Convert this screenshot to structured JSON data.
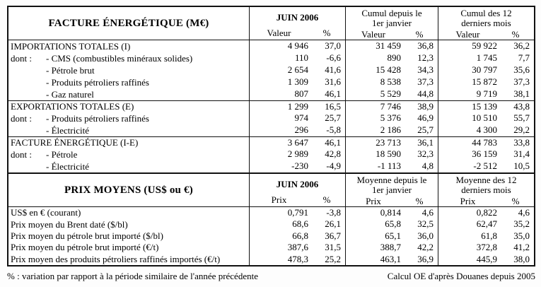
{
  "table1": {
    "title": "FACTURE ÉNERGÉTIQUE (M€)",
    "groups": [
      {
        "title": "JUIN 2006",
        "sub": [
          "Valeur",
          "%"
        ]
      },
      {
        "title": "Cumul depuis le\n1er janvier",
        "sub": [
          "Valeur",
          "%"
        ]
      },
      {
        "title": "Cumul des 12\nderniers mois",
        "sub": [
          "Valeur",
          "%"
        ]
      }
    ],
    "rows": [
      {
        "_class": "",
        "prefix": "",
        "label": "IMPORTATIONS TOTALES (I)",
        "v1": "4 946",
        "p1": "37,0",
        "v2": "31 459",
        "p2": "36,8",
        "v3": "59 922",
        "p3": "36,2"
      },
      {
        "_class": "indent",
        "prefix": "dont :",
        "label": "- CMS (combustibles minéraux solides)",
        "v1": "110",
        "p1": "-6,6",
        "v2": "890",
        "p2": "12,3",
        "v3": "1 745",
        "p3": "7,7"
      },
      {
        "_class": "indent",
        "prefix": "",
        "label": "- Pétrole brut",
        "v1": "2 654",
        "p1": "41,6",
        "v2": "15 428",
        "p2": "34,3",
        "v3": "30 797",
        "p3": "35,6"
      },
      {
        "_class": "indent",
        "prefix": "",
        "label": "- Produits pétroliers raffinés",
        "v1": "1 309",
        "p1": "31,6",
        "v2": "8 538",
        "p2": "37,3",
        "v3": "15 872",
        "p3": "37,3"
      },
      {
        "_class": "indent",
        "prefix": "",
        "label": "- Gaz naturel",
        "v1": "807",
        "p1": "46,1",
        "v2": "5 529",
        "p2": "44,8",
        "v3": "9 719",
        "p3": "38,1"
      },
      {
        "_class": "top",
        "prefix": "",
        "label": "EXPORTATIONS TOTALES (E)",
        "v1": "1 299",
        "p1": "16,5",
        "v2": "7 746",
        "p2": "38,9",
        "v3": "15 139",
        "p3": "43,8"
      },
      {
        "_class": "indent",
        "prefix": "dont :",
        "label": "- Produits pétroliers raffinés",
        "v1": "974",
        "p1": "25,7",
        "v2": "5 376",
        "p2": "46,9",
        "v3": "10 510",
        "p3": "55,7"
      },
      {
        "_class": "indent",
        "prefix": "",
        "label": "- Électricité",
        "v1": "296",
        "p1": "-5,8",
        "v2": "2 186",
        "p2": "25,7",
        "v3": "4 300",
        "p3": "29,2"
      },
      {
        "_class": "top",
        "prefix": "",
        "label": "FACTURE ÉNERGÉTIQUE (I-E)",
        "v1": "3 647",
        "p1": "46,1",
        "v2": "23 713",
        "p2": "36,1",
        "v3": "44 783",
        "p3": "33,8"
      },
      {
        "_class": "indent",
        "prefix": "dont :",
        "label": "- Pétrole",
        "v1": "2 989",
        "p1": "42,8",
        "v2": "18 590",
        "p2": "32,3",
        "v3": "36 159",
        "p3": "31,4"
      },
      {
        "_class": "indent",
        "prefix": "",
        "label": "- Électricité",
        "v1": "-230",
        "p1": "-4,9",
        "v2": "-1 113",
        "p2": "4,8",
        "v3": "-2 512",
        "p3": "10,5"
      }
    ]
  },
  "table2": {
    "title": "PRIX MOYENS (US$ ou €)",
    "groups": [
      {
        "title": "JUIN 2006",
        "sub": [
          "Prix",
          "%"
        ]
      },
      {
        "title": "Moyenne depuis le\n1er janvier",
        "sub": [
          "Prix",
          "%"
        ]
      },
      {
        "title": "Moyenne des 12\nderniers mois",
        "sub": [
          "Prix",
          "%"
        ]
      }
    ],
    "rows": [
      {
        "_class": "",
        "prefix": "",
        "label": "US$ en € (courant)",
        "v1": "0,791",
        "p1": "-3,8",
        "v2": "0,814",
        "p2": "4,6",
        "v3": "0,822",
        "p3": "4,6"
      },
      {
        "_class": "",
        "prefix": "",
        "label": "Prix moyen du Brent daté ($/bl)",
        "v1": "68,6",
        "p1": "26,1",
        "v2": "65,8",
        "p2": "32,5",
        "v3": "62,47",
        "p3": "35,2"
      },
      {
        "_class": "",
        "prefix": "",
        "label": "Prix moyen du pétrole brut importé ($/bl)",
        "v1": "66,8",
        "p1": "36,7",
        "v2": "65,1",
        "p2": "36,0",
        "v3": "61,8",
        "p3": "35,0"
      },
      {
        "_class": "",
        "prefix": "",
        "label": "Prix moyen du pétrole brut importé (€/t)",
        "v1": "387,6",
        "p1": "31,5",
        "v2": "388,7",
        "p2": "42,2",
        "v3": "372,8",
        "p3": "41,2"
      },
      {
        "_class": "",
        "prefix": "",
        "label": "Prix moyen des produits pétroliers raffinés importés (€/t)",
        "v1": "478,3",
        "p1": "25,2",
        "v2": "463,1",
        "p2": "36,9",
        "v3": "445,9",
        "p3": "38,0"
      }
    ]
  },
  "footer": {
    "note": "% : variation par rapport à la période similaire de l'année précédente",
    "source": "Calcul OE d'après Douanes depuis 2005"
  }
}
